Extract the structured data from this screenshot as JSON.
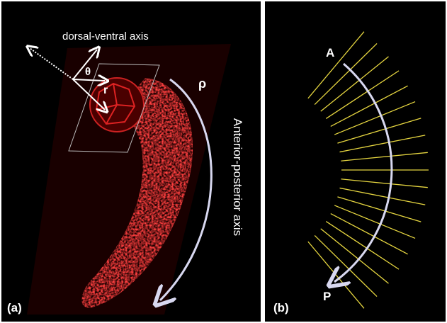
{
  "panel_a": {
    "label": "(a)",
    "dorsal_ventral": "dorsal-ventral axis",
    "theta": "θ",
    "r": "r",
    "rho": "ρ",
    "anterior_posterior": "Anterior-posterior axis"
  },
  "panel_b": {
    "label": "(b)",
    "anterior": "A",
    "posterior": "P"
  }
}
